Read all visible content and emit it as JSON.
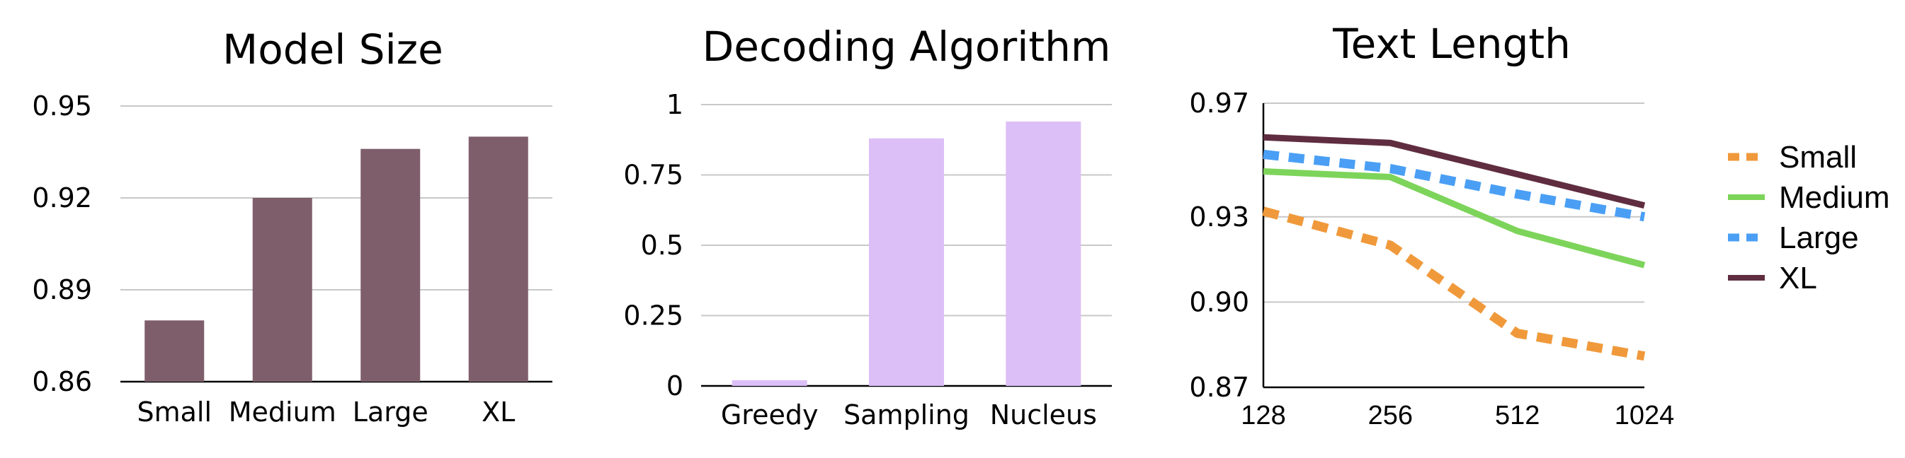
{
  "chart_data": [
    {
      "type": "bar",
      "title": "Model Size",
      "categories": [
        "Small",
        "Medium",
        "Large",
        "XL"
      ],
      "values": [
        0.88,
        0.92,
        0.936,
        0.94
      ],
      "ylim": [
        0.86,
        0.95
      ],
      "yticks": [
        "0.86",
        "0.89",
        "0.92",
        "0.95"
      ],
      "grid": true,
      "color": "#7f5e6b"
    },
    {
      "type": "bar",
      "title": "Decoding Algorithm",
      "categories": [
        "Greedy",
        "Sampling",
        "Nucleus"
      ],
      "values": [
        0.02,
        0.88,
        0.94
      ],
      "ylim": [
        0,
        1
      ],
      "yticks": [
        "0",
        "0.25",
        "0.5",
        "0.75",
        "1"
      ],
      "grid": true,
      "color": "#dcbff7"
    },
    {
      "type": "line",
      "title": "Text Length",
      "x": [
        "128",
        "256",
        "512",
        "1024"
      ],
      "ylim": [
        0.87,
        0.97
      ],
      "yticks": [
        "0.87",
        "0.90",
        "0.93",
        "0.97"
      ],
      "grid": true,
      "legend": "right",
      "series": [
        {
          "name": "Small",
          "values": [
            0.932,
            0.92,
            0.889,
            0.881
          ],
          "color": "#f0993b",
          "dashed": true
        },
        {
          "name": "Medium",
          "values": [
            0.946,
            0.944,
            0.925,
            0.913
          ],
          "color": "#7dd45a",
          "dashed": false
        },
        {
          "name": "Large",
          "values": [
            0.952,
            0.947,
            0.938,
            0.93
          ],
          "color": "#4a9ff5",
          "dashed": true
        },
        {
          "name": "XL",
          "values": [
            0.958,
            0.956,
            0.945,
            0.934
          ],
          "color": "#5f2d3f",
          "dashed": false
        }
      ]
    }
  ]
}
